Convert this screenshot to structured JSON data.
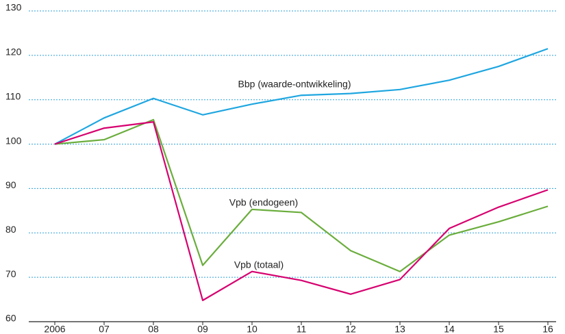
{
  "chart_data": {
    "type": "line",
    "categories": [
      "2006",
      "07",
      "08",
      "09",
      "10",
      "11",
      "12",
      "13",
      "14",
      "15",
      "16"
    ],
    "series": [
      {
        "name": "Bbp (waarde-ontwikkeling)",
        "color": "#1ea6e0",
        "values": [
          100,
          105.9,
          110.3,
          106.6,
          109.0,
          111.0,
          111.4,
          112.3,
          114.4,
          117.5,
          121.5
        ]
      },
      {
        "name": "Vpb (endogeen)",
        "color": "#6aad3c",
        "values": [
          100,
          101.0,
          105.5,
          72.7,
          85.3,
          84.6,
          76.0,
          71.3,
          79.5,
          82.5,
          86.0
        ]
      },
      {
        "name": "Vpb (totaal)",
        "color": "#d6006f",
        "values": [
          100,
          103.6,
          105.0,
          64.8,
          71.3,
          69.3,
          66.2,
          69.5,
          81.0,
          85.8,
          89.7
        ]
      }
    ],
    "ylim": [
      60,
      130
    ],
    "yticks": [
      60,
      70,
      80,
      90,
      100,
      110,
      120,
      130
    ],
    "grid": true
  }
}
